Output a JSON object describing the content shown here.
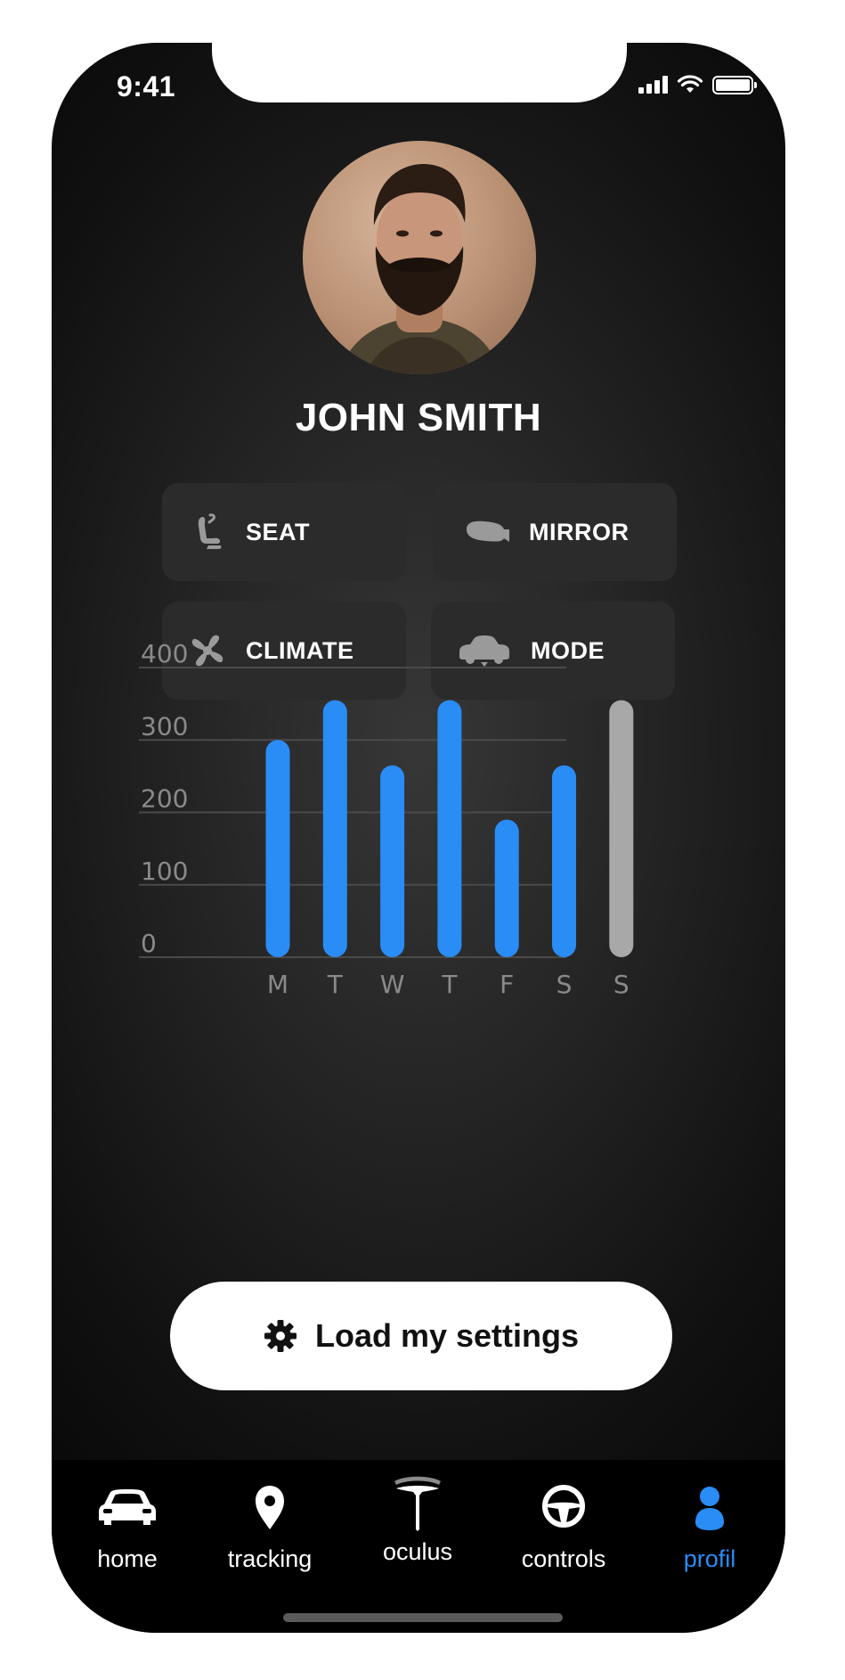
{
  "status_bar": {
    "time": "9:41"
  },
  "profile": {
    "name": "JOHN SMITH"
  },
  "tiles": [
    {
      "label": "SEAT",
      "icon": "seat-icon"
    },
    {
      "label": "MIRROR",
      "icon": "mirror-icon"
    },
    {
      "label": "CLIMATE",
      "icon": "fan-icon"
    },
    {
      "label": "MODE",
      "icon": "car-mode-icon"
    }
  ],
  "chart_data": {
    "type": "bar",
    "categories": [
      "M",
      "T",
      "W",
      "T",
      "F",
      "S",
      "S"
    ],
    "values": [
      300,
      355,
      265,
      355,
      190,
      265,
      355
    ],
    "ylim": [
      0,
      400
    ],
    "yticks": [
      "400",
      "300",
      "200",
      "100",
      "0"
    ],
    "grid": true,
    "colors": [
      "#2a8cf5",
      "#2a8cf5",
      "#2a8cf5",
      "#2a8cf5",
      "#2a8cf5",
      "#2a8cf5",
      "#a8a8a8"
    ]
  },
  "action": {
    "label": "Load my settings",
    "icon": "gear-icon"
  },
  "tabbar": {
    "items": [
      {
        "label": "home",
        "icon": "car-icon"
      },
      {
        "label": "tracking",
        "icon": "location-pin-icon"
      },
      {
        "label": "oculus",
        "icon": "tesla-logo-icon"
      },
      {
        "label": "controls",
        "icon": "steering-wheel-icon"
      },
      {
        "label": "profil",
        "icon": "user-icon"
      }
    ],
    "active_index": 4,
    "active_color": "#2a8cf5"
  }
}
